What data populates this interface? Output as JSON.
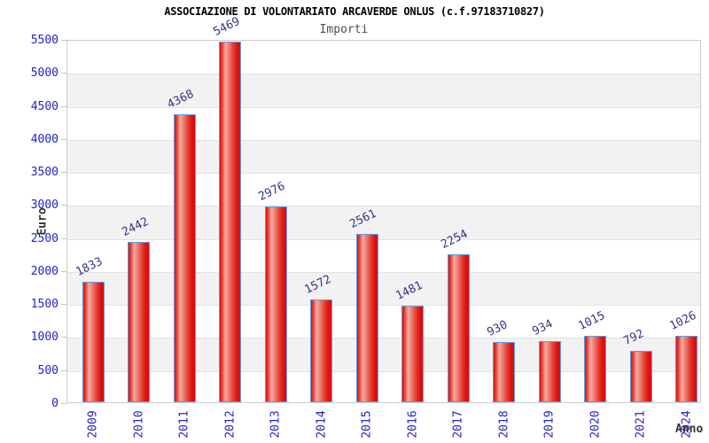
{
  "chart_data": {
    "type": "bar",
    "title": "ASSOCIAZIONE DI VOLONTARIATO ARCAVERDE ONLUS (c.f.97183710827)",
    "subtitle": "Importi",
    "xlabel": "Anno",
    "ylabel": "Euro",
    "categories": [
      "2009",
      "2010",
      "2011",
      "2012",
      "2013",
      "2014",
      "2015",
      "2016",
      "2017",
      "2018",
      "2019",
      "2020",
      "2021",
      "2024"
    ],
    "values": [
      1833,
      2442,
      4368,
      5469,
      2976,
      1572,
      2561,
      1481,
      2254,
      930,
      934,
      1015,
      792,
      1026
    ],
    "ylim": [
      0,
      5500
    ],
    "ytick_step": 500,
    "yticks": [
      0,
      500,
      1000,
      1500,
      2000,
      2500,
      3000,
      3500,
      4000,
      4500,
      5000,
      5500
    ],
    "grid": "horizontal-bands",
    "legend": "none",
    "colors": {
      "bar_fill_main": "#dc0e0e",
      "bar_fill_highlight": "#f5aaa2",
      "bar_border": "#5b9fe3",
      "tick_label_blue": "#2222cc",
      "value_label_blue": "#333388",
      "band_gray": "#f2f2f2",
      "axis_gray": "#cccccc",
      "title_black": "#000000",
      "subtitle_gray": "#4d4d4d",
      "axis_title_gray": "#333333"
    }
  }
}
